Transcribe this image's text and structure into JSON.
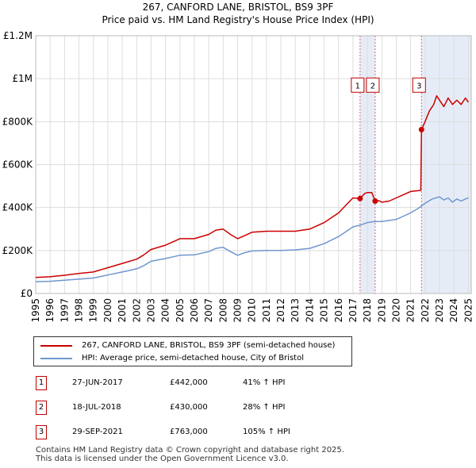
{
  "header": {
    "title_line1": "267, CANFORD LANE, BRISTOL, BS9 3PF",
    "title_line2": "Price paid vs. HM Land Registry's House Price Index (HPI)"
  },
  "colors": {
    "property": "#cc0000",
    "hpi": "#6f97cf",
    "grid": "#dddddd",
    "sale_line": "#e06080",
    "shade": "#e6ecf7"
  },
  "chart_data": {
    "type": "line",
    "title": "267, CANFORD LANE, BRISTOL, BS9 3PF",
    "subtitle": "Price paid vs. HM Land Registry's House Price Index (HPI)",
    "xlabel": "",
    "ylabel": "",
    "xlim": [
      1995,
      2025.2
    ],
    "ylim": [
      0,
      1200000
    ],
    "y_ticks": [
      0,
      200000,
      400000,
      600000,
      800000,
      1000000,
      1200000
    ],
    "y_tick_labels": [
      "£0",
      "£200K",
      "£400K",
      "£600K",
      "£800K",
      "£1M",
      "£1.2M"
    ],
    "x_ticks": [
      1995,
      1996,
      1997,
      1998,
      1999,
      2000,
      2001,
      2002,
      2003,
      2004,
      2005,
      2006,
      2007,
      2008,
      2009,
      2010,
      2011,
      2012,
      2013,
      2014,
      2015,
      2016,
      2017,
      2018,
      2019,
      2020,
      2021,
      2022,
      2023,
      2024,
      2025
    ],
    "x_tick_labels": [
      "1995",
      "1996",
      "1997",
      "1998",
      "1999",
      "2000",
      "2001",
      "2002",
      "2003",
      "2004",
      "2005",
      "2006",
      "2007",
      "2008",
      "2009",
      "2010",
      "2011",
      "2012",
      "2013",
      "2014",
      "2015",
      "2016",
      "2017",
      "2018",
      "2019",
      "2020",
      "2021",
      "2022",
      "2023",
      "2024",
      "2025"
    ],
    "grid": true,
    "shaded_ranges": [
      [
        2017.49,
        2018.54
      ],
      [
        2021.75,
        2025.2
      ]
    ],
    "series": [
      {
        "name": "267, CANFORD LANE, BRISTOL, BS9 3PF (semi-detached house)",
        "x": [
          1995.0,
          1996.0,
          1997.0,
          1998.0,
          1999.0,
          2000.0,
          2001.0,
          2002.0,
          2002.5,
          2003.0,
          2004.0,
          2005.0,
          2006.0,
          2007.0,
          2007.5,
          2008.0,
          2008.5,
          2009.0,
          2009.5,
          2010.0,
          2011.0,
          2012.0,
          2013.0,
          2014.0,
          2015.0,
          2016.0,
          2016.5,
          2017.0,
          2017.49,
          2017.8,
          2018.0,
          2018.3,
          2018.54,
          2018.8,
          2019.0,
          2019.5,
          2020.0,
          2020.5,
          2021.0,
          2021.7,
          2021.75,
          2022.0,
          2022.3,
          2022.6,
          2022.8,
          2023.0,
          2023.3,
          2023.6,
          2023.9,
          2024.2,
          2024.5,
          2024.8,
          2025.0
        ],
        "values": [
          75000,
          78000,
          85000,
          93000,
          100000,
          120000,
          140000,
          160000,
          180000,
          205000,
          225000,
          255000,
          255000,
          275000,
          295000,
          300000,
          275000,
          255000,
          270000,
          285000,
          290000,
          290000,
          290000,
          300000,
          330000,
          375000,
          410000,
          445000,
          442000,
          465000,
          470000,
          470000,
          430000,
          432000,
          425000,
          430000,
          445000,
          460000,
          475000,
          480000,
          763000,
          800000,
          850000,
          880000,
          920000,
          900000,
          870000,
          910000,
          880000,
          900000,
          880000,
          910000,
          890000
        ]
      },
      {
        "name": "HPI: Average price, semi-detached house, City of Bristol",
        "x": [
          1995.0,
          1996.0,
          1997.0,
          1998.0,
          1999.0,
          2000.0,
          2001.0,
          2002.0,
          2002.5,
          2003.0,
          2004.0,
          2005.0,
          2006.0,
          2007.0,
          2007.5,
          2008.0,
          2008.5,
          2009.0,
          2009.5,
          2010.0,
          2011.0,
          2012.0,
          2013.0,
          2014.0,
          2015.0,
          2016.0,
          2016.5,
          2017.0,
          2017.5,
          2018.0,
          2018.5,
          2019.0,
          2019.5,
          2020.0,
          2020.5,
          2021.0,
          2021.5,
          2022.0,
          2022.5,
          2023.0,
          2023.3,
          2023.6,
          2023.9,
          2024.2,
          2024.5,
          2024.8,
          2025.0
        ],
        "values": [
          55000,
          57000,
          62000,
          67000,
          72000,
          86000,
          100000,
          115000,
          130000,
          150000,
          163000,
          178000,
          180000,
          195000,
          210000,
          215000,
          195000,
          178000,
          190000,
          198000,
          200000,
          200000,
          203000,
          210000,
          232000,
          265000,
          287000,
          310000,
          318000,
          330000,
          335000,
          335000,
          340000,
          345000,
          360000,
          375000,
          395000,
          420000,
          440000,
          450000,
          435000,
          445000,
          425000,
          440000,
          430000,
          440000,
          445000
        ]
      }
    ],
    "sales": [
      {
        "label": "1",
        "x": 2017.49,
        "price": 442000
      },
      {
        "label": "2",
        "x": 2018.54,
        "price": 430000
      },
      {
        "label": "3",
        "x": 2021.75,
        "price": 763000
      }
    ],
    "sale_label_y": 970000
  },
  "legend": {
    "property": "267, CANFORD LANE, BRISTOL, BS9 3PF (semi-detached house)",
    "hpi": "HPI: Average price, semi-detached house, City of Bristol"
  },
  "sales_table": [
    {
      "num": "1",
      "date": "27-JUN-2017",
      "price": "£442,000",
      "hpi": "41% ↑ HPI"
    },
    {
      "num": "2",
      "date": "18-JUL-2018",
      "price": "£430,000",
      "hpi": "28% ↑ HPI"
    },
    {
      "num": "3",
      "date": "29-SEP-2021",
      "price": "£763,000",
      "hpi": "105% ↑ HPI"
    }
  ],
  "footer": {
    "line1": "Contains HM Land Registry data © Crown copyright and database right 2025.",
    "line2": "This data is licensed under the Open Government Licence v3.0."
  }
}
